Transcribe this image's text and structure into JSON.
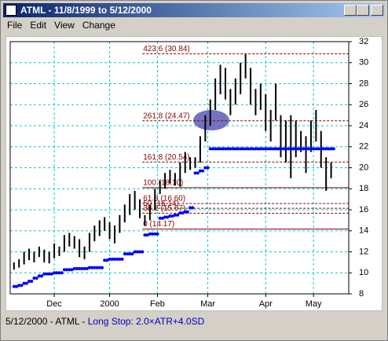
{
  "window": {
    "title": "ATML - 11/8/1999 to 5/12/2000"
  },
  "menu": [
    "File",
    "Edit",
    "View",
    "Change"
  ],
  "status": {
    "prefix": "5/12/2000 - ATML - ",
    "stop": "Long Stop: 2.0×ATR+4.0SD"
  },
  "chart_data": {
    "type": "range",
    "x": [
      0,
      2,
      4,
      6,
      8,
      10,
      12,
      14,
      16,
      18,
      20,
      22,
      24,
      26,
      28,
      30,
      32,
      34,
      36,
      38,
      40,
      42,
      44,
      46,
      48,
      50,
      52,
      54,
      56,
      58,
      60,
      62,
      64,
      66,
      68,
      70,
      72,
      74,
      76,
      78,
      80,
      82,
      84,
      86,
      88,
      90,
      92,
      94,
      96,
      98,
      100,
      102,
      104,
      106,
      108,
      110,
      112,
      114,
      116,
      118,
      120,
      122,
      124,
      126
    ],
    "high": [
      11.0,
      11.3,
      12.0,
      12.3,
      12.0,
      12.5,
      12.2,
      12.0,
      12.8,
      12.5,
      13.6,
      13.8,
      13.5,
      13.2,
      12.5,
      13.8,
      14.5,
      15.0,
      15.3,
      14.8,
      14.5,
      15.5,
      16.5,
      17.5,
      17.8,
      17.0,
      15.5,
      16.5,
      18.0,
      18.8,
      19.5,
      19.8,
      19.5,
      20.5,
      21.5,
      21.0,
      21.0,
      23.0,
      25.0,
      26.5,
      28.5,
      29.8,
      29.5,
      27.5,
      28.5,
      30.0,
      30.8,
      29.5,
      27.5,
      28.0,
      27.0,
      25.5,
      28.0,
      25.0,
      24.5,
      25.0,
      24.5,
      23.5,
      23.0,
      24.5,
      25.5,
      23.5,
      21.0,
      20.5
    ],
    "low": [
      10.3,
      10.5,
      10.8,
      11.2,
      11.0,
      11.5,
      11.0,
      10.9,
      11.4,
      11.6,
      12.0,
      12.5,
      12.3,
      11.5,
      11.3,
      12.0,
      13.0,
      13.5,
      14.0,
      13.2,
      12.8,
      13.8,
      14.8,
      15.5,
      16.0,
      15.2,
      14.5,
      15.0,
      16.0,
      17.5,
      18.0,
      18.5,
      18.3,
      18.2,
      19.5,
      19.8,
      20.0,
      20.5,
      22.5,
      24.0,
      25.5,
      27.0,
      26.5,
      25.0,
      26.0,
      27.0,
      28.5,
      26.0,
      25.0,
      25.5,
      23.5,
      22.5,
      24.5,
      21.0,
      20.5,
      19.0,
      21.0,
      21.5,
      19.5,
      21.5,
      22.5,
      20.0,
      17.8,
      19.0
    ],
    "color": "#000000",
    "stop": [
      8.7,
      8.8,
      9.0,
      9.2,
      9.5,
      9.7,
      9.9,
      9.9,
      10.0,
      10.0,
      10.3,
      10.3,
      10.4,
      10.4,
      10.4,
      10.5,
      10.5,
      10.5,
      11.2,
      11.3,
      11.3,
      11.3,
      11.8,
      11.8,
      12.0,
      12.0,
      13.6,
      13.7,
      13.7,
      15.2,
      15.3,
      15.4,
      15.5,
      15.7,
      15.8,
      16.2,
      19.5,
      19.7,
      20.0,
      21.8,
      21.8,
      21.8,
      21.8,
      21.8,
      21.8,
      21.8,
      21.8,
      21.8,
      21.8,
      21.8,
      21.8,
      21.8,
      21.8,
      21.8,
      21.8,
      21.8,
      21.8,
      21.8,
      21.8,
      21.8,
      21.8,
      21.8,
      21.8,
      21.8
    ],
    "stop_color": "#0000ff",
    "levels": [
      {
        "label": "423.6 (30.84)",
        "value": 30.84,
        "dashed": true
      },
      {
        "label": "261.8 (24.47)",
        "value": 24.47,
        "dashed": true
      },
      {
        "label": "161.8 (20.54)",
        "value": 20.54,
        "dashed": true
      },
      {
        "label": "100 (18.10)",
        "value": 18.1,
        "dashed": false
      },
      {
        "label": "61.8 (16.60)",
        "value": 16.6,
        "dashed": true
      },
      {
        "label": "50 (16.14)",
        "value": 16.14,
        "dashed": true
      },
      {
        "label": "38.2 (15.67)",
        "value": 15.67,
        "dashed": true
      },
      {
        "label": "0 (14.17)",
        "value": 14.17,
        "dashed": false
      }
    ],
    "level_color": "#8b0000",
    "level_start": 51,
    "xlim": [
      -1.5,
      133
    ],
    "xticks": [
      {
        "value": 16,
        "label": "Dec"
      },
      {
        "value": 38,
        "label": "2000"
      },
      {
        "value": 57,
        "label": "Feb"
      },
      {
        "value": 77,
        "label": "Mar"
      },
      {
        "value": 100,
        "label": "Apr"
      },
      {
        "value": 119,
        "label": "May"
      }
    ],
    "ylim": [
      8,
      32
    ],
    "yticks": [
      8,
      10,
      12,
      14,
      16,
      18,
      20,
      22,
      24,
      26,
      28,
      30,
      32
    ],
    "grid": true,
    "grid_color": "#00cccc"
  }
}
